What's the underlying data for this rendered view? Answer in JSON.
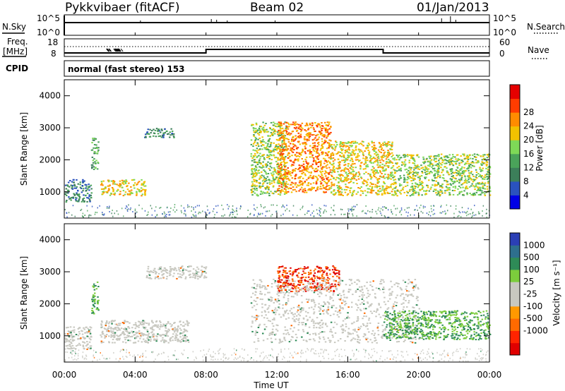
{
  "header": {
    "station": "Pykkvibaer (fitACF)",
    "beam": "Beam 02",
    "date": "01/Jan/2013"
  },
  "strips": {
    "nsky_label": "N.Sky",
    "nsearch_label": "N.Search",
    "log_top": "10^5",
    "log_bottom": "10^0",
    "freq_label_line1": "Freq.",
    "freq_label_line2": "[MHz]",
    "freq_ticks": [
      "18",
      "8"
    ],
    "nave_label": "Nave",
    "nave_ticks": [
      "60",
      "0"
    ],
    "cpid_label": "CPID",
    "cpid_text": "normal (fast stereo) 153"
  },
  "axes": {
    "xlabel": "Time UT",
    "x_ticks": [
      "00:00",
      "04:00",
      "08:00",
      "12:00",
      "16:00",
      "20:00",
      "00:00"
    ],
    "ylabel": "Slant Range [km]",
    "y_ticks": [
      "1000",
      "2000",
      "3000",
      "4000"
    ]
  },
  "power_bar": {
    "label": "Power [dB]",
    "ticks": [
      "4",
      "8",
      "12",
      "16",
      "20",
      "24",
      "28"
    ],
    "colors": [
      "#0000e6",
      "#2a52be",
      "#3c7f5a",
      "#4aa35a",
      "#7ed957",
      "#f2c200",
      "#ff8c00",
      "#ff3c00",
      "#e60000"
    ]
  },
  "velocity_bar": {
    "label": "Velocity [m s⁻¹]",
    "ticks": [
      "1000",
      "500",
      "100",
      "25",
      "-25",
      "-100",
      "-500",
      "-1000"
    ],
    "colors": [
      "#2b3fb5",
      "#2e6f8e",
      "#2e8b57",
      "#7ccd3c",
      "#c8c8c0",
      "#c8c8c0",
      "#ff9900",
      "#ff6a00",
      "#ff2400",
      "#e00000"
    ]
  },
  "chart_data": {
    "type": "heatmap",
    "x_range_hours": [
      0,
      24
    ],
    "y_range_km": [
      180,
      4500
    ],
    "frequency_mhz_segments": [
      {
        "start_h": 0,
        "end_h": 8,
        "value": 10
      },
      {
        "start_h": 8,
        "end_h": 18,
        "value": 12
      },
      {
        "start_h": 18,
        "end_h": 24,
        "value": 10
      }
    ],
    "power_regions": [
      {
        "t0": 0.0,
        "t1": 1.5,
        "r0": 700,
        "r1": 1400,
        "level": 8
      },
      {
        "t0": 1.5,
        "t1": 1.9,
        "r0": 1700,
        "r1": 2700,
        "level": 12
      },
      {
        "t0": 2.0,
        "t1": 4.6,
        "r0": 900,
        "r1": 1400,
        "level": 20
      },
      {
        "t0": 4.5,
        "t1": 6.2,
        "r0": 2700,
        "r1": 3000,
        "level": 8
      },
      {
        "t0": 10.5,
        "t1": 12.5,
        "r0": 900,
        "r1": 3200,
        "level": 16
      },
      {
        "t0": 12.0,
        "t1": 15.0,
        "r0": 1000,
        "r1": 3200,
        "level": 24
      },
      {
        "t0": 15.0,
        "t1": 18.5,
        "r0": 900,
        "r1": 2600,
        "level": 20
      },
      {
        "t0": 18.5,
        "t1": 24.0,
        "r0": 900,
        "r1": 2200,
        "level": 16
      }
    ],
    "velocity_regions": [
      {
        "t0": 0.0,
        "t1": 1.5,
        "r0": 600,
        "r1": 1300,
        "level": 0
      },
      {
        "t0": 1.5,
        "t1": 1.9,
        "r0": 1700,
        "r1": 2700,
        "level": 100
      },
      {
        "t0": 2.0,
        "t1": 7.0,
        "r0": 800,
        "r1": 1500,
        "level": 0
      },
      {
        "t0": 4.6,
        "t1": 8.0,
        "r0": 2800,
        "r1": 3200,
        "level": 0
      },
      {
        "t0": 12.0,
        "t1": 15.5,
        "r0": 2400,
        "r1": 3200,
        "level": -500
      },
      {
        "t0": 10.5,
        "t1": 20.0,
        "r0": 800,
        "r1": 2800,
        "level": 0
      },
      {
        "t0": 18.0,
        "t1": 24.0,
        "r0": 900,
        "r1": 1800,
        "level": 100
      }
    ]
  }
}
